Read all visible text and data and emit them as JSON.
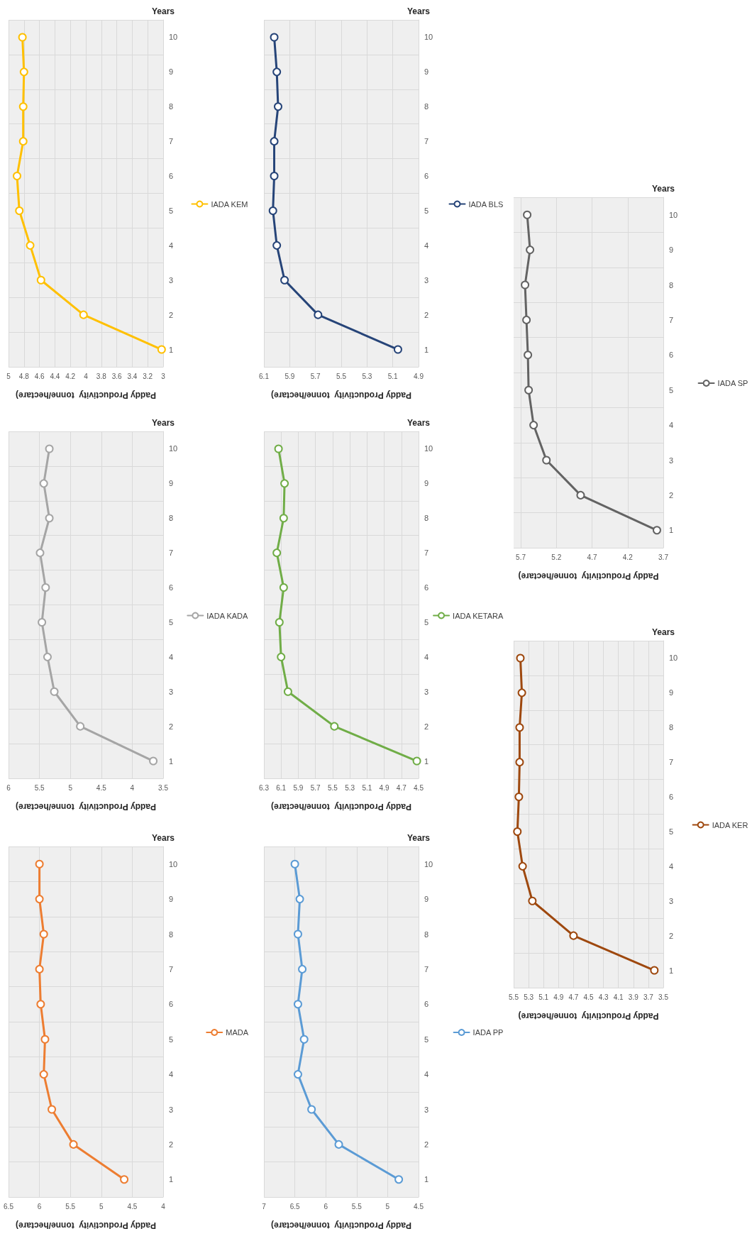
{
  "chart_data": [
    {
      "type": "line",
      "orientation": "horizontal",
      "ylabel": "Years",
      "xlabel": "Paddy Productivity  tonne/hectare)",
      "categories": [
        "10",
        "9",
        "8",
        "7",
        "6",
        "5",
        "4",
        "3",
        "2",
        "1"
      ],
      "series": [
        {
          "name": "IADA KEM",
          "color": "#ffc000",
          "values": [
            4.82,
            4.8,
            4.81,
            4.81,
            4.89,
            4.86,
            4.72,
            4.58,
            4.03,
            3.02
          ]
        }
      ],
      "xlim": [
        5,
        3
      ],
      "xticks": [
        5,
        4.8,
        4.6,
        4.4,
        4.2,
        4,
        3.8,
        3.6,
        3.4,
        3.2,
        3
      ],
      "grid": true,
      "legend": "right",
      "marker": "circle"
    },
    {
      "type": "line",
      "orientation": "horizontal",
      "ylabel": "Years",
      "xlabel": "Paddy Productivity  tonne/hectare)",
      "categories": [
        "10",
        "9",
        "8",
        "7",
        "6",
        "5",
        "4",
        "3",
        "2",
        "1"
      ],
      "series": [
        {
          "name": "IADA BLS",
          "color": "#264478",
          "values": [
            6.02,
            6.0,
            5.99,
            6.02,
            6.02,
            6.03,
            6.0,
            5.94,
            5.68,
            5.06
          ]
        }
      ],
      "xlim": [
        6.1,
        4.9
      ],
      "xticks": [
        6.1,
        5.9,
        5.7,
        5.5,
        5.3,
        5.1,
        4.9
      ],
      "grid": true,
      "legend": "right",
      "marker": "circle"
    },
    {
      "type": "line",
      "orientation": "horizontal",
      "ylabel": "Years",
      "xlabel": "Paddy Productivity  tonne/hectare)",
      "categories": [
        "10",
        "9",
        "8",
        "7",
        "6",
        "5",
        "4",
        "3",
        "2",
        "1"
      ],
      "series": [
        {
          "name": "IADA SP",
          "color": "#636363",
          "values": [
            5.61,
            5.57,
            5.64,
            5.62,
            5.6,
            5.59,
            5.52,
            5.34,
            4.86,
            3.79
          ]
        }
      ],
      "xlim": [
        5.8,
        3.7
      ],
      "xticks": [
        5.7,
        5.2,
        4.7,
        4.2,
        3.7
      ],
      "grid": true,
      "legend": "right",
      "marker": "circle"
    },
    {
      "type": "line",
      "orientation": "horizontal",
      "ylabel": "Years",
      "xlabel": "Paddy Productivity  tonne/hectare)",
      "categories": [
        "10",
        "9",
        "8",
        "7",
        "6",
        "5",
        "4",
        "3",
        "2",
        "1"
      ],
      "series": [
        {
          "name": "IADA KADA",
          "color": "#a5a5a5",
          "values": [
            5.34,
            5.43,
            5.34,
            5.49,
            5.4,
            5.46,
            5.37,
            5.26,
            4.84,
            3.66
          ]
        }
      ],
      "xlim": [
        6,
        3.5
      ],
      "xticks": [
        6,
        5.5,
        5,
        4.5,
        4,
        3.5
      ],
      "grid": true,
      "legend": "right",
      "marker": "circle"
    },
    {
      "type": "line",
      "orientation": "horizontal",
      "ylabel": "Years",
      "xlabel": "Paddy Productivity  tonne/hectare)",
      "categories": [
        "10",
        "9",
        "8",
        "7",
        "6",
        "5",
        "4",
        "3",
        "2",
        "1"
      ],
      "series": [
        {
          "name": "IADA KETARA",
          "color": "#70ad47",
          "values": [
            6.13,
            6.06,
            6.07,
            6.15,
            6.07,
            6.12,
            6.1,
            6.02,
            5.48,
            4.52
          ]
        }
      ],
      "xlim": [
        6.3,
        4.5
      ],
      "xticks": [
        6.3,
        6.1,
        5.9,
        5.7,
        5.5,
        5.3,
        5.1,
        4.9,
        4.7,
        4.5
      ],
      "grid": true,
      "legend": "right",
      "marker": "circle"
    },
    {
      "type": "line",
      "orientation": "horizontal",
      "ylabel": "Years",
      "xlabel": "Paddy Productivity  tonne/hectare)",
      "categories": [
        "10",
        "9",
        "8",
        "7",
        "6",
        "5",
        "4",
        "3",
        "2",
        "1"
      ],
      "series": [
        {
          "name": "IADA KER",
          "color": "#9e480e",
          "values": [
            5.41,
            5.39,
            5.42,
            5.42,
            5.43,
            5.45,
            5.38,
            5.25,
            4.7,
            3.62
          ]
        }
      ],
      "xlim": [
        5.5,
        3.5
      ],
      "xticks": [
        5.5,
        5.3,
        5.1,
        4.9,
        4.7,
        4.5,
        4.3,
        4.1,
        3.9,
        3.7,
        3.5
      ],
      "grid": true,
      "legend": "right",
      "marker": "circle"
    },
    {
      "type": "line",
      "orientation": "horizontal",
      "ylabel": "Years",
      "xlabel": "Paddy Productivity  tonne/hectare)",
      "categories": [
        "10",
        "9",
        "8",
        "7",
        "6",
        "5",
        "4",
        "3",
        "2",
        "1"
      ],
      "series": [
        {
          "name": "MADA",
          "color": "#ed7d31",
          "values": [
            6.0,
            6.0,
            5.93,
            6.0,
            5.98,
            5.91,
            5.93,
            5.8,
            5.45,
            4.63
          ]
        }
      ],
      "xlim": [
        6.5,
        4
      ],
      "xticks": [
        6.5,
        6,
        5.5,
        5,
        4.5,
        4
      ],
      "grid": true,
      "legend": "right",
      "marker": "circle"
    },
    {
      "type": "line",
      "orientation": "horizontal",
      "ylabel": "Years",
      "xlabel": "Paddy Productivity  tonne/hectare)",
      "categories": [
        "10",
        "9",
        "8",
        "7",
        "6",
        "5",
        "4",
        "3",
        "2",
        "1"
      ],
      "series": [
        {
          "name": "IADA PP",
          "color": "#5b9bd5",
          "values": [
            6.5,
            6.42,
            6.45,
            6.38,
            6.45,
            6.35,
            6.45,
            6.23,
            5.79,
            4.82
          ]
        }
      ],
      "xlim": [
        7,
        4.5
      ],
      "xticks": [
        7,
        6.5,
        6,
        5.5,
        5,
        4.5
      ],
      "grid": true,
      "legend": "right",
      "marker": "circle"
    }
  ]
}
